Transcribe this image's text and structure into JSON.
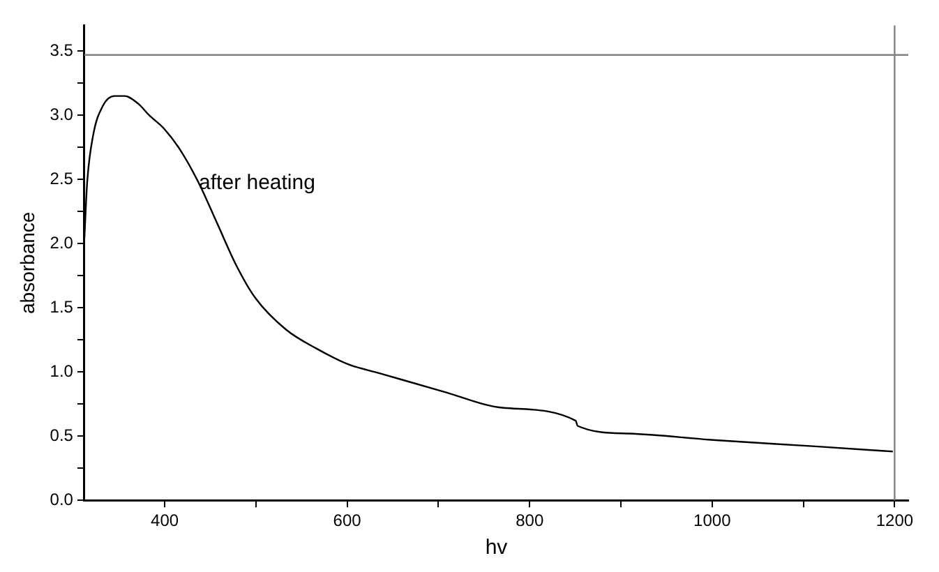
{
  "chart_data": {
    "type": "line",
    "xlabel": "hv",
    "ylabel": "absorbance",
    "x": [
      312,
      315,
      321.5,
      332,
      345,
      356,
      371,
      383,
      400,
      417,
      437.5,
      458,
      478.5,
      499,
      533,
      567,
      601,
      635.5,
      704,
      772,
      850.5,
      852.5,
      908.5,
      1001,
      1113,
      1198
    ],
    "series": [
      {
        "color": "#000000",
        "values": [
          2.04,
          2.47,
          2.84,
          3.07,
          3.15,
          3.15,
          3.09,
          3.0,
          2.89,
          2.73,
          2.47,
          2.15,
          1.83,
          1.58,
          1.33,
          1.18,
          1.06,
          0.99,
          0.85,
          0.72,
          0.62,
          0.58,
          0.52,
          0.47,
          0.42,
          0.38
        ]
      }
    ],
    "xlim": [
      312,
      1215
    ],
    "ylim": [
      0,
      3.7
    ],
    "xticks": [
      400,
      {
        "value": 500,
        "label": null
      },
      600,
      {
        "value": 700,
        "label": null
      },
      800,
      {
        "value": 900,
        "label": null
      },
      1000,
      {
        "value": 1100,
        "label": null
      },
      1200
    ],
    "yticks": [
      {
        "value": 0,
        "label": "0.0"
      },
      {
        "value": 0.25,
        "label": null
      },
      0.5,
      {
        "value": 0.75,
        "label": null
      },
      {
        "value": 1,
        "label": "1.0"
      },
      {
        "value": 1.25,
        "label": null
      },
      1.5,
      {
        "value": 1.75,
        "label": null
      },
      {
        "value": 2,
        "label": "2.0"
      },
      {
        "value": 2.25,
        "label": null
      },
      2.5,
      {
        "value": 2.75,
        "label": null
      },
      {
        "value": 3,
        "label": "3.0"
      },
      {
        "value": 3.25,
        "label": null
      },
      3.5
    ],
    "ref_lines": [
      {
        "axis": "y",
        "value": 3.47,
        "color": "#808080"
      },
      {
        "axis": "x",
        "value": 1200,
        "color": "#808080"
      }
    ],
    "annotations": [
      {
        "text": "after heating",
        "x": 437.5,
        "y": 2.47
      }
    ],
    "grid": false,
    "legend": false,
    "marker": "none",
    "line_style": "solid"
  }
}
